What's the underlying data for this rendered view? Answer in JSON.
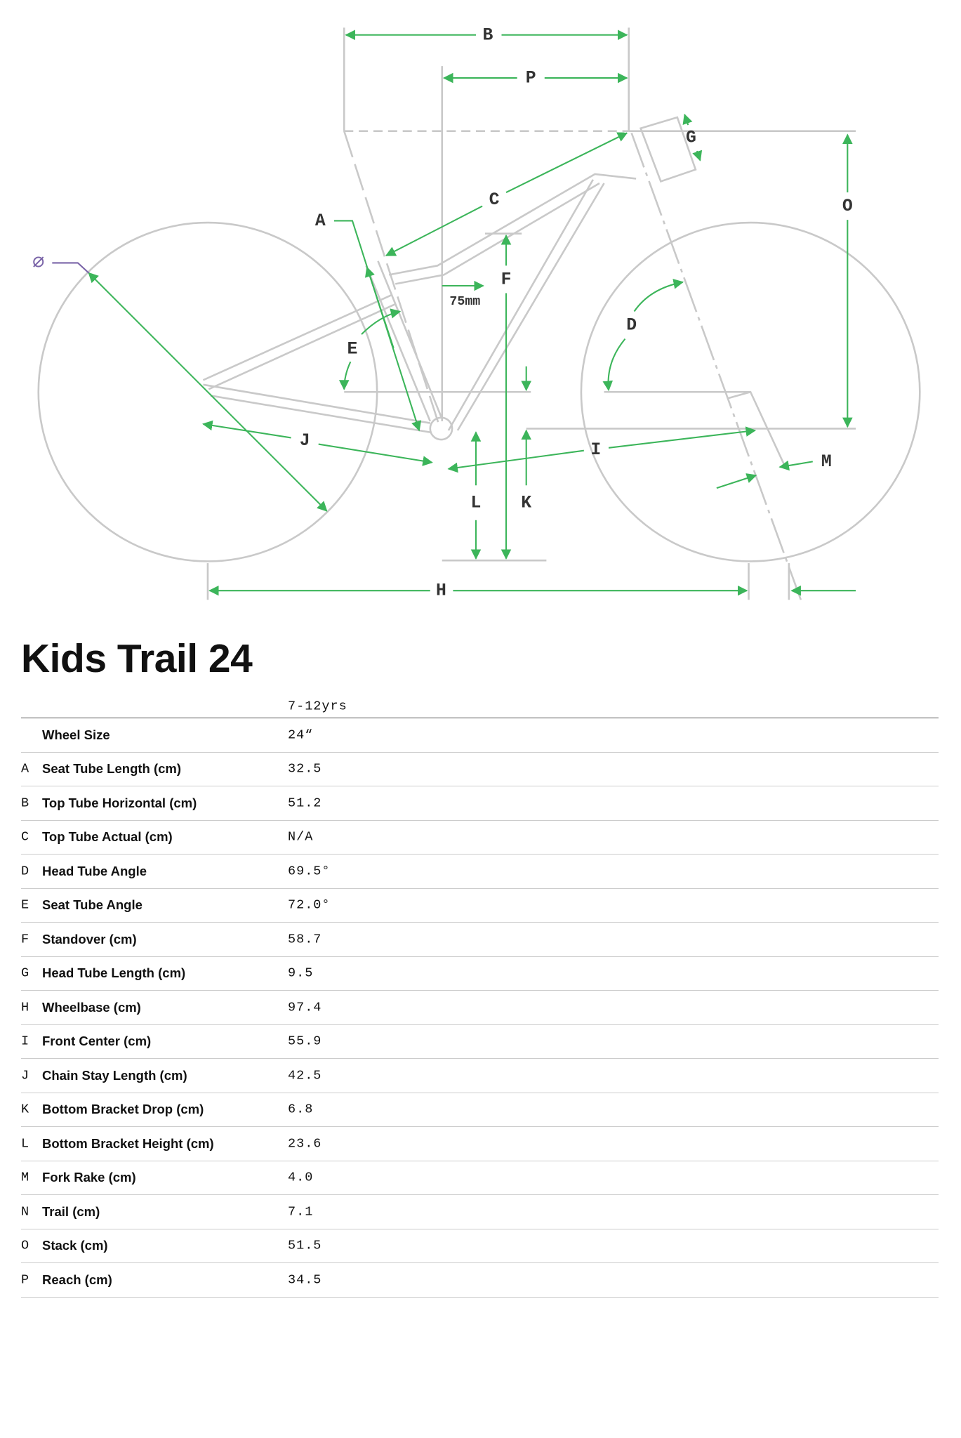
{
  "diagram": {
    "labels": [
      "B",
      "P",
      "G",
      "C",
      "O",
      "A",
      "F",
      "75mm",
      "D",
      "E",
      "J",
      "I",
      "M",
      "L",
      "K",
      "H",
      "∅"
    ]
  },
  "title": "Kids Trail 24",
  "table": {
    "column": "7-12yrs",
    "rows": [
      {
        "name": "Wheel Size",
        "value": "24“"
      },
      {
        "letter": "A",
        "name": "Seat Tube Length (cm)",
        "value": "32.5"
      },
      {
        "letter": "B",
        "name": "Top Tube Horizontal (cm)",
        "value": "51.2"
      },
      {
        "letter": "C",
        "name": "Top Tube Actual (cm)",
        "value": "N/A"
      },
      {
        "letter": "D",
        "name": "Head Tube Angle",
        "value": "69.5°"
      },
      {
        "letter": "E",
        "name": "Seat Tube Angle",
        "value": "72.0°"
      },
      {
        "letter": "F",
        "name": "Standover (cm)",
        "value": "58.7"
      },
      {
        "letter": "G",
        "name": "Head Tube Length (cm)",
        "value": "9.5"
      },
      {
        "letter": "H",
        "name": "Wheelbase (cm)",
        "value": "97.4"
      },
      {
        "letter": "I",
        "name": "Front Center (cm)",
        "value": "55.9"
      },
      {
        "letter": "J",
        "name": "Chain Stay Length (cm)",
        "value": "42.5"
      },
      {
        "letter": "K",
        "name": "Bottom Bracket Drop (cm)",
        "value": "6.8"
      },
      {
        "letter": "L",
        "name": "Bottom Bracket Height (cm)",
        "value": "23.6"
      },
      {
        "letter": "M",
        "name": "Fork Rake (cm)",
        "value": "4.0"
      },
      {
        "letter": "N",
        "name": "Trail (cm)",
        "value": "7.1"
      },
      {
        "letter": "O",
        "name": "Stack (cm)",
        "value": "51.5"
      },
      {
        "letter": "P",
        "name": "Reach (cm)",
        "value": "34.5"
      }
    ]
  }
}
